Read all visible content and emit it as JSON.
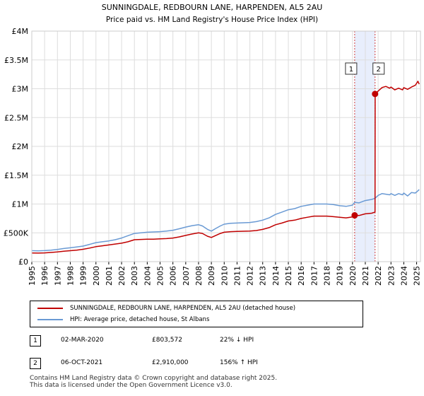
{
  "chart_data": {
    "type": "line",
    "title": "SUNNINGDALE, REDBOURN LANE, HARPENDEN, AL5 2AU",
    "subtitle": "Price paid vs. HM Land Registry's House Price Index (HPI)",
    "xlabel": "",
    "ylabel": "",
    "xlim": [
      1995,
      2025.3
    ],
    "ylim": [
      0,
      4000000
    ],
    "y_ticks": [
      0,
      500000,
      1000000,
      1500000,
      2000000,
      2500000,
      3000000,
      3500000,
      4000000
    ],
    "y_tick_labels": [
      "£0",
      "£500K",
      "£1M",
      "£1.5M",
      "£2M",
      "£2.5M",
      "£3M",
      "£3.5M",
      "£4M"
    ],
    "x_ticks": [
      1995,
      1996,
      1997,
      1998,
      1999,
      2000,
      2001,
      2002,
      2003,
      2004,
      2005,
      2006,
      2007,
      2008,
      2009,
      2010,
      2011,
      2012,
      2013,
      2014,
      2015,
      2016,
      2017,
      2018,
      2019,
      2020,
      2021,
      2022,
      2023,
      2024,
      2025
    ],
    "grid": true,
    "highlight_band": [
      2020.17,
      2021.76
    ],
    "series": [
      {
        "name": "HPI: Average price, detached house, St Albans",
        "color": "#6a9ad4",
        "x": [
          1995,
          1995.5,
          1996,
          1996.5,
          1997,
          1997.5,
          1998,
          1998.5,
          1999,
          1999.5,
          2000,
          2000.5,
          2001,
          2001.5,
          2002,
          2002.5,
          2003,
          2003.5,
          2004,
          2004.5,
          2005,
          2005.5,
          2006,
          2006.5,
          2007,
          2007.5,
          2008,
          2008.3,
          2008.7,
          2009,
          2009.3,
          2009.7,
          2010,
          2010.5,
          2011,
          2011.5,
          2012,
          2012.5,
          2013,
          2013.5,
          2014,
          2014.5,
          2015,
          2015.5,
          2016,
          2016.5,
          2017,
          2017.5,
          2018,
          2018.5,
          2019,
          2019.5,
          2020,
          2020.17,
          2020.5,
          2021,
          2021.5,
          2021.76,
          2022,
          2022.3,
          2022.6,
          2022.9,
          2023,
          2023.3,
          2023.6,
          2023.9,
          2024,
          2024.3,
          2024.6,
          2024.9,
          2025.1,
          2025.2
        ],
        "y": [
          190000,
          188000,
          192000,
          200000,
          212000,
          228000,
          240000,
          255000,
          270000,
          300000,
          330000,
          345000,
          360000,
          380000,
          410000,
          450000,
          490000,
          500000,
          510000,
          515000,
          520000,
          530000,
          545000,
          570000,
          600000,
          625000,
          640000,
          620000,
          560000,
          530000,
          570000,
          620000,
          650000,
          665000,
          670000,
          675000,
          680000,
          695000,
          720000,
          760000,
          820000,
          860000,
          900000,
          920000,
          960000,
          980000,
          1000000,
          1000000,
          1000000,
          990000,
          970000,
          960000,
          980000,
          1030000,
          1020000,
          1060000,
          1080000,
          1100000,
          1150000,
          1180000,
          1170000,
          1160000,
          1180000,
          1150000,
          1180000,
          1160000,
          1190000,
          1140000,
          1200000,
          1190000,
          1230000,
          1250000
        ]
      },
      {
        "name": "SUNNINGDALE, REDBOURN LANE, HARPENDEN, AL5 2AU (detached house)",
        "color": "#c00000",
        "x": [
          1995,
          1995.5,
          1996,
          1996.5,
          1997,
          1997.5,
          1998,
          1998.5,
          1999,
          1999.5,
          2000,
          2000.5,
          2001,
          2001.5,
          2002,
          2002.5,
          2003,
          2003.5,
          2004,
          2004.5,
          2005,
          2005.5,
          2006,
          2006.5,
          2007,
          2007.5,
          2008,
          2008.3,
          2008.7,
          2009,
          2009.3,
          2009.7,
          2010,
          2010.5,
          2011,
          2011.5,
          2012,
          2012.5,
          2013,
          2013.5,
          2014,
          2014.5,
          2015,
          2015.5,
          2016,
          2016.5,
          2017,
          2017.5,
          2018,
          2018.5,
          2019,
          2019.5,
          2020,
          2020.17,
          2020.5,
          2021,
          2021.5,
          2021.76,
          2021.77,
          2022,
          2022.3,
          2022.6,
          2022.9,
          2023,
          2023.3,
          2023.6,
          2023.9,
          2024,
          2024.3,
          2024.6,
          2024.9,
          2025.1,
          2025.2
        ],
        "y": [
          150000,
          148000,
          152000,
          160000,
          168000,
          180000,
          190000,
          200000,
          215000,
          235000,
          260000,
          275000,
          290000,
          305000,
          320000,
          345000,
          380000,
          385000,
          390000,
          390000,
          395000,
          400000,
          410000,
          430000,
          455000,
          480000,
          500000,
          490000,
          440000,
          420000,
          450000,
          490000,
          510000,
          520000,
          525000,
          528000,
          530000,
          540000,
          560000,
          590000,
          640000,
          670000,
          705000,
          720000,
          750000,
          770000,
          790000,
          790000,
          790000,
          780000,
          770000,
          760000,
          775000,
          803572,
          800000,
          830000,
          840000,
          860000,
          2910000,
          2960000,
          3020000,
          3040000,
          3010000,
          3030000,
          2980000,
          3010000,
          2980000,
          3020000,
          2990000,
          3030000,
          3060000,
          3130000,
          3080000
        ]
      }
    ],
    "sales": [
      {
        "num": "1",
        "x": 2020.17,
        "y": 803572
      },
      {
        "num": "2",
        "x": 2021.76,
        "y": 2910000
      }
    ]
  },
  "legend": {
    "property_label": "SUNNINGDALE, REDBOURN LANE, HARPENDEN, AL5 2AU (detached house)",
    "hpi_label": "HPI: Average price, detached house, St Albans",
    "property_color": "#c00000",
    "hpi_color": "#6a9ad4"
  },
  "sales_table": [
    {
      "num": "1",
      "date": "02-MAR-2020",
      "price": "£803,572",
      "hpi": "22% ↓ HPI"
    },
    {
      "num": "2",
      "date": "06-OCT-2021",
      "price": "£2,910,000",
      "hpi": "156% ↑ HPI"
    }
  ],
  "footer": {
    "line1": "Contains HM Land Registry data © Crown copyright and database right 2025.",
    "line2": "This data is licensed under the Open Government Licence v3.0."
  }
}
